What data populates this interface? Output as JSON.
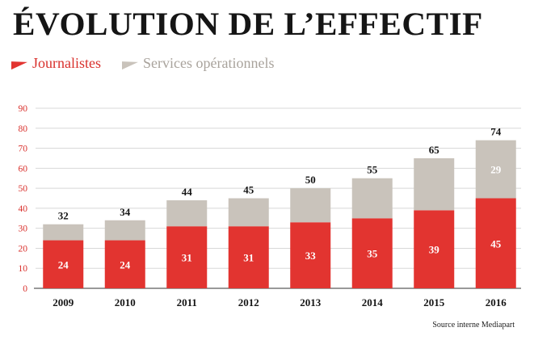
{
  "title": "ÉVOLUTION DE L’EFFECTIF",
  "source": "Source interne Mediapart",
  "colors": {
    "journalistes": "#e23430",
    "services": "#c9c3bb",
    "axis_text": "#d9302c"
  },
  "chart_data": {
    "type": "bar",
    "stacked": true,
    "title": "ÉVOLUTION DE L’EFFECTIF",
    "xlabel": "",
    "ylabel": "",
    "ylim": [
      0,
      90
    ],
    "yticks": [
      0,
      10,
      20,
      30,
      40,
      50,
      60,
      70,
      80,
      90
    ],
    "grid": true,
    "legend_position": "top-left",
    "categories": [
      "2009",
      "2010",
      "2011",
      "2012",
      "2013",
      "2014",
      "2015",
      "2016"
    ],
    "series": [
      {
        "name": "Journalistes",
        "values": [
          24,
          24,
          31,
          31,
          33,
          35,
          39,
          45
        ]
      },
      {
        "name": "Services opérationnels",
        "values": [
          8,
          10,
          13,
          14,
          17,
          20,
          26,
          29
        ]
      }
    ],
    "totals": [
      32,
      34,
      44,
      45,
      50,
      55,
      65,
      74
    ],
    "segment_labels": [
      {
        "category": "2016",
        "series": "Services opérationnels",
        "value": 29
      }
    ]
  }
}
